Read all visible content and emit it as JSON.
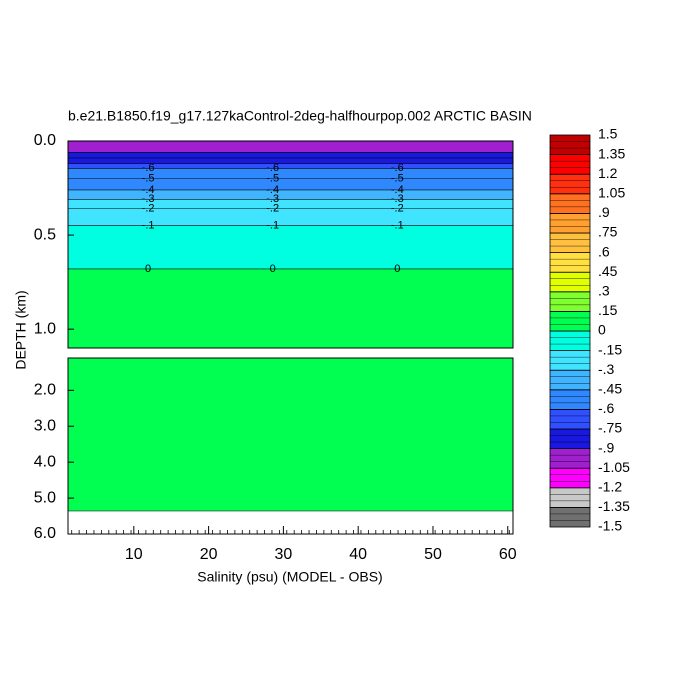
{
  "chart_data": {
    "type": "contour",
    "title": "b.e21.B1850.f19_g17.127kaControl-2deg-halfhourpop.002 ARCTIC BASIN",
    "xlabel": "Salinity (psu) (MODEL - OBS)",
    "ylabel": "DEPTH (km)",
    "xlim": [
      1.2,
      60.7
    ],
    "xticks": [
      10,
      20,
      30,
      40,
      50,
      60
    ],
    "panels": [
      {
        "ylim": [
          0,
          1.1
        ],
        "yticks": [
          {
            "value": 0,
            "label": "0.0"
          },
          {
            "value": 0.5,
            "label": "0.5"
          },
          {
            "value": 1,
            "label": "1.0"
          }
        ]
      },
      {
        "ylim": [
          1.1,
          6
        ],
        "yticks": [
          {
            "value": 2,
            "label": "2.0"
          },
          {
            "value": 3,
            "label": "3.0"
          },
          {
            "value": 4,
            "label": "4.0"
          },
          {
            "value": 5,
            "label": "5.0"
          },
          {
            "value": 6,
            "label": "6.0"
          }
        ],
        "bottom_depth": 5.36
      }
    ],
    "contours": [
      {
        "level": -0.9,
        "depth": 0.06
      },
      {
        "level": -0.8,
        "depth": 0.09
      },
      {
        "level": -0.7,
        "depth": 0.12
      },
      {
        "level": -0.6,
        "label": "-.6",
        "depth": 0.145
      },
      {
        "level": -0.5,
        "label": "-.5",
        "depth": 0.2
      },
      {
        "level": -0.4,
        "label": "-.4",
        "depth": 0.26
      },
      {
        "level": -0.3,
        "label": "-.3",
        "depth": 0.31
      },
      {
        "level": -0.2,
        "label": "-.2",
        "depth": 0.36
      },
      {
        "level": -0.1,
        "label": "-.1",
        "depth": 0.45
      },
      {
        "level": 0,
        "depth": 0.68
      }
    ],
    "colorbar": {
      "ticks": [
        -1.5,
        -1.35,
        -1.2,
        -1.05,
        {
          "value": -0.9,
          "label": "-.9"
        },
        {
          "value": -0.75,
          "label": "-.75"
        },
        {
          "value": -0.6,
          "label": "-.6"
        },
        {
          "value": -0.45,
          "label": "-.45"
        },
        {
          "value": -0.3,
          "label": "-.3"
        },
        {
          "value": -0.15,
          "label": "-.15"
        },
        0,
        {
          "value": 0.15,
          "label": ".15"
        },
        {
          "value": 0.3,
          "label": ".3"
        },
        {
          "value": 0.45,
          "label": ".45"
        },
        {
          "value": 0.6,
          "label": ".6"
        },
        {
          "value": 0.75,
          "label": ".75"
        },
        {
          "value": 0.9,
          "label": ".9"
        },
        1.05,
        1.2,
        1.35,
        1.5
      ],
      "colors": [
        "#707070",
        "#c8c8c8",
        "#ff00ff",
        "#a020d0",
        "#1818e0",
        "#3050ff",
        "#3088ff",
        "#40b4ff",
        "#40e4ff",
        "#00ffe0",
        "#00ff50",
        "#80ff30",
        "#e0ff00",
        "#ffe040",
        "#ffc040",
        "#ffa030",
        "#ff7020",
        "#ff3010",
        "#ff0000",
        "#c00000"
      ]
    }
  }
}
